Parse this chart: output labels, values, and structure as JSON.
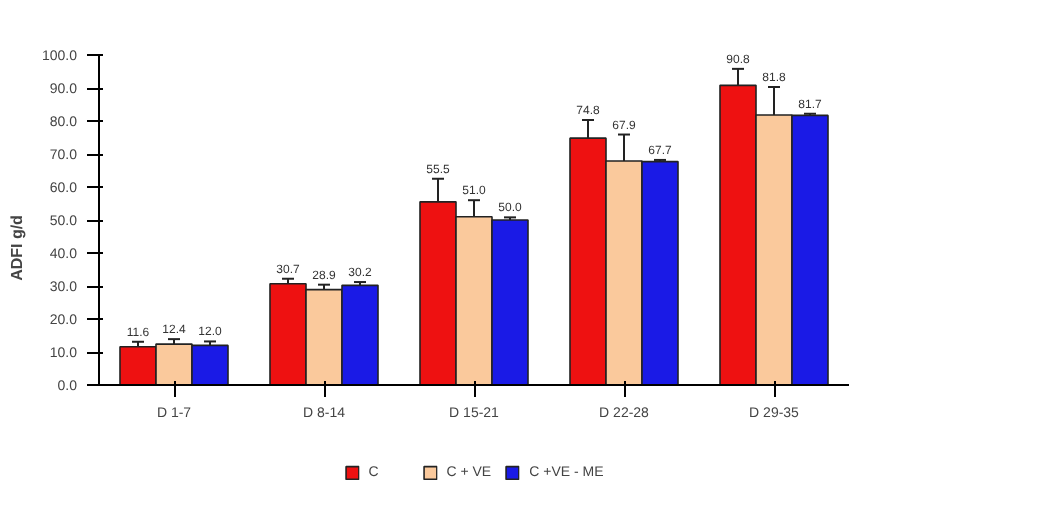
{
  "chart_data": {
    "type": "bar",
    "ylabel": "ADFI g/d",
    "categories": [
      "D 1-7",
      "D 8-14",
      "D 15-21",
      "D 22-28",
      "D 29-35"
    ],
    "series": [
      {
        "name": "C",
        "color": "#ee1111",
        "values": [
          11.6,
          30.7,
          55.5,
          74.8,
          90.8
        ],
        "errors": [
          1.5,
          1.5,
          7,
          5.5,
          5
        ],
        "value_labels": [
          "11.6",
          "30.7",
          "55.5",
          "74.8",
          "90.8"
        ]
      },
      {
        "name": "C + VE",
        "color": "#fac99c",
        "values": [
          12.4,
          28.9,
          51.0,
          67.9,
          81.8
        ],
        "errors": [
          1.5,
          1.5,
          5,
          8,
          8.5
        ],
        "value_labels": [
          "12.4",
          "28.9",
          "51.0",
          "67.9",
          "81.8"
        ]
      },
      {
        "name": "C +VE - ME",
        "color": "#1a1ae6",
        "values": [
          12.0,
          30.2,
          50.0,
          67.7,
          81.7
        ],
        "errors": [
          1.2,
          1,
          0.8,
          0.5,
          0.5
        ],
        "value_labels": [
          "12.0",
          "30.2",
          "50.0",
          "67.7",
          "81.7"
        ]
      }
    ],
    "ylim": [
      0,
      100
    ],
    "yticks": [
      {
        "value": 0,
        "label": "0.0"
      },
      {
        "value": 10,
        "label": "10.0"
      },
      {
        "value": 20,
        "label": "20.0"
      },
      {
        "value": 30,
        "label": "30.0"
      },
      {
        "value": 40,
        "label": "40.0"
      },
      {
        "value": 50,
        "label": "50.0"
      },
      {
        "value": 60,
        "label": "60.0"
      },
      {
        "value": 70,
        "label": "70.0"
      },
      {
        "value": 80,
        "label": "80.0"
      },
      {
        "value": 90,
        "label": "90.0"
      },
      {
        "value": 100,
        "label": "100.0"
      }
    ],
    "legend": "bottom"
  }
}
